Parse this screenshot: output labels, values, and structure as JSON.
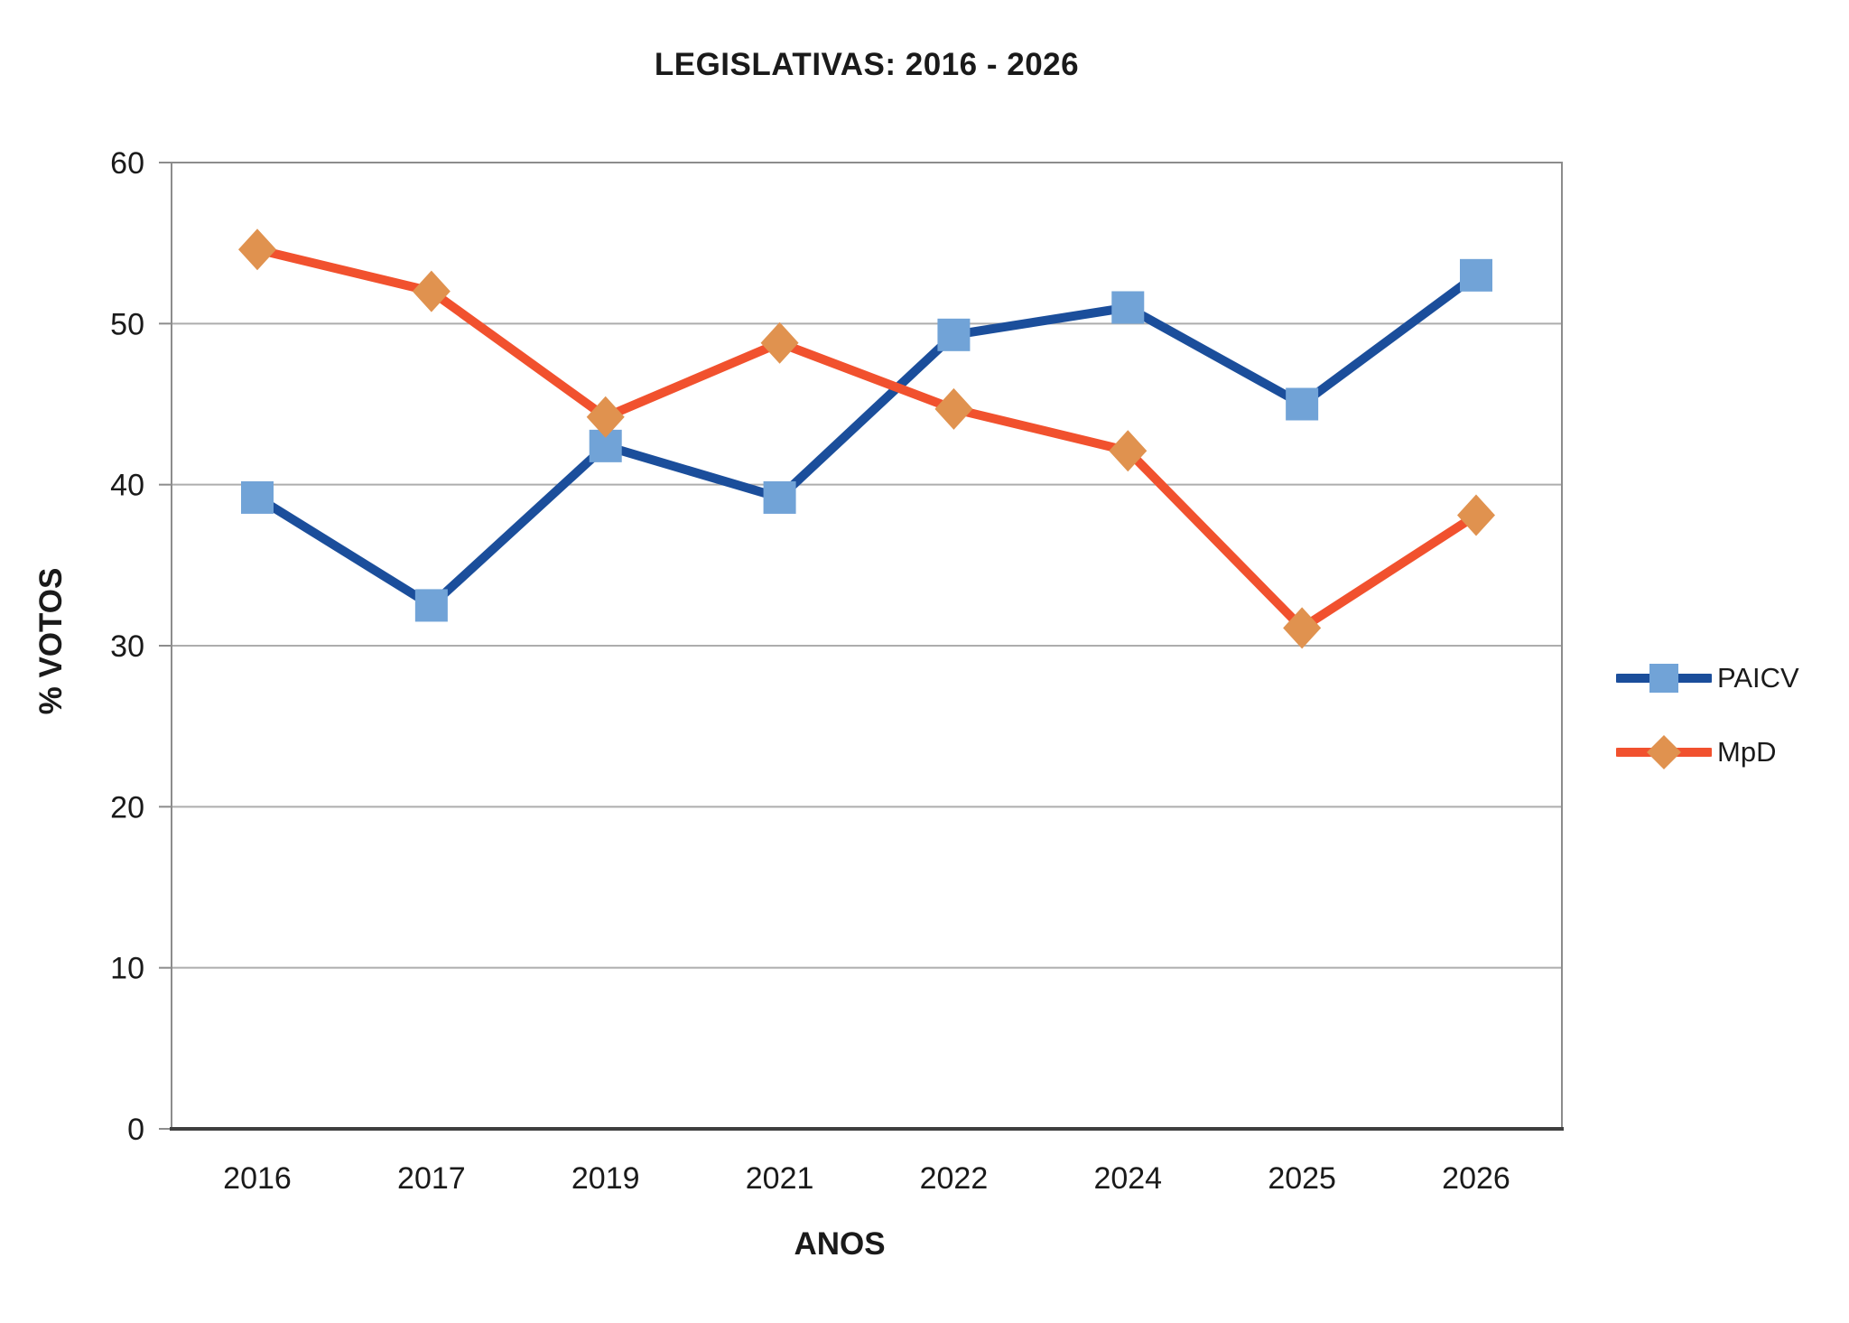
{
  "title": "LEGISLATIVAS: 2016 - 2026",
  "chart_data": {
    "type": "line",
    "title": "LEGISLATIVAS: 2016 - 2026",
    "categories": [
      "2016",
      "2017",
      "2019",
      "2021",
      "2022",
      "2024",
      "2025",
      "2026"
    ],
    "series": [
      {
        "name": "PAICV",
        "values": [
          39.2,
          32.5,
          42.4,
          39.2,
          49.3,
          51.0,
          45.0,
          53.0
        ],
        "line_color": "#1B4E9B",
        "marker_color": "#71A3D7",
        "marker": "square"
      },
      {
        "name": "MpD",
        "values": [
          54.6,
          52.0,
          44.2,
          48.8,
          44.7,
          42.1,
          31.1,
          38.1
        ],
        "line_color": "#F1512E",
        "marker_color": "#E0924F",
        "marker": "diamond"
      }
    ],
    "xlabel": "ANOS",
    "ylabel": "% VOTOS",
    "ylim": [
      0,
      60
    ],
    "ytick_step": 10,
    "yticks": [
      0,
      10,
      20,
      30,
      40,
      50,
      60
    ],
    "grid": "horizontal",
    "legend_position": "right"
  },
  "colors": {
    "gridline": "#ADADAD",
    "plot_border": "#8C8C8C",
    "axis_line": "#3F3F3F",
    "tick_mark": "#8C8C8C",
    "text": "#1A1A1A",
    "background": "#FFFFFF"
  }
}
